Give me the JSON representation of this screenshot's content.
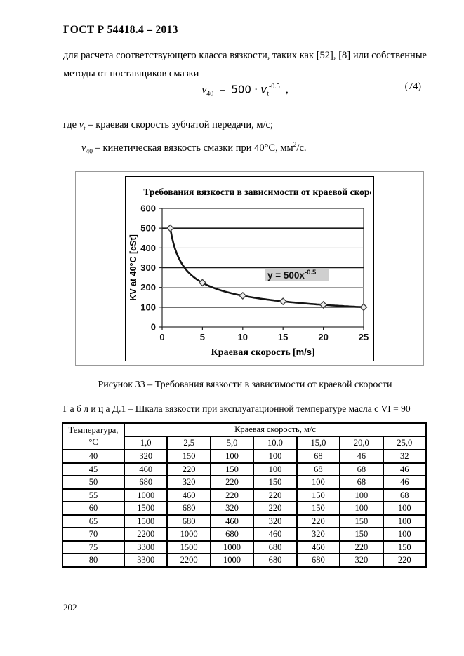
{
  "page": {
    "header": "ГОСТ Р 54418.4 – 2013",
    "number": "202"
  },
  "intro": {
    "line1": "для расчета соответствующего класса вязкости, таких как [52], [8] или собственные",
    "line2": "методы от поставщиков смазки"
  },
  "formula": {
    "nu": "ν",
    "nu_sub": "40",
    "eq": "=",
    "coef": "500",
    "times": "·",
    "v": "v",
    "v_sub": "t",
    "exp": "-0.5",
    "comma": ",",
    "label": "(74)"
  },
  "definitions": {
    "vt": {
      "lead": "где",
      "sym": "v",
      "sub": "t",
      "rest": "– краевая скорость зубчатой передачи, м/с;"
    },
    "nu40": {
      "sym": "ν",
      "sub": "40",
      "rest1": "– кинетическая вязкость смазки при  40°С, мм",
      "sup": "2",
      "rest2": "/с."
    }
  },
  "figure": {
    "caption": "Рисунок 33 – Требования вязкости в зависимости от краевой скорости"
  },
  "chart_data": {
    "type": "scatter",
    "title": "Требования вязкости в зависимости от краевой скорости",
    "xlabel": "Краевая скорость [m/s]",
    "ylabel": "KV at 40°C [cSt]",
    "annotation": {
      "base": "y = 500x",
      "sup": "-0.5"
    },
    "xlim": [
      0,
      25
    ],
    "ylim": [
      0,
      600
    ],
    "x_ticks": [
      0,
      5,
      10,
      15,
      20,
      25
    ],
    "y_ticks": [
      0,
      100,
      200,
      300,
      400,
      500,
      600
    ],
    "points": [
      [
        1,
        500
      ],
      [
        5,
        224
      ],
      [
        10,
        158
      ],
      [
        15,
        129
      ],
      [
        20,
        112
      ],
      [
        25,
        100
      ]
    ],
    "curve_formula": "y = 500 * x^-0.5",
    "grid": "horizontal",
    "legend": "none"
  },
  "table": {
    "title_label": "Т а б л и ц а  Д.1",
    "title_rest": "– Шкала вязкости при эксплуатационной температуре масла с VI = 90",
    "col1_header_line1": "Температура,",
    "col1_header_line2": "°С",
    "group_header": "Краевая скорость, м/с",
    "speed_headers": [
      "1,0",
      "2,5",
      "5,0",
      "10,0",
      "15,0",
      "20,0",
      "25,0"
    ],
    "rows": [
      {
        "temp": "40",
        "values": [
          "320",
          "150",
          "100",
          "100",
          "68",
          "46",
          "32"
        ]
      },
      {
        "temp": "45",
        "values": [
          "460",
          "220",
          "150",
          "100",
          "68",
          "68",
          "46"
        ]
      },
      {
        "temp": "50",
        "values": [
          "680",
          "320",
          "220",
          "150",
          "100",
          "68",
          "46"
        ]
      },
      {
        "temp": "55",
        "values": [
          "1000",
          "460",
          "220",
          "220",
          "150",
          "100",
          "68"
        ]
      },
      {
        "temp": "60",
        "values": [
          "1500",
          "680",
          "320",
          "220",
          "150",
          "100",
          "100"
        ]
      },
      {
        "temp": "65",
        "values": [
          "1500",
          "680",
          "460",
          "320",
          "220",
          "150",
          "100"
        ]
      },
      {
        "temp": "70",
        "values": [
          "2200",
          "1000",
          "680",
          "460",
          "320",
          "150",
          "100"
        ]
      },
      {
        "temp": "75",
        "values": [
          "3300",
          "1500",
          "1000",
          "680",
          "460",
          "220",
          "150"
        ]
      },
      {
        "temp": "80",
        "values": [
          "3300",
          "2200",
          "1000",
          "680",
          "680",
          "320",
          "220"
        ]
      }
    ]
  }
}
